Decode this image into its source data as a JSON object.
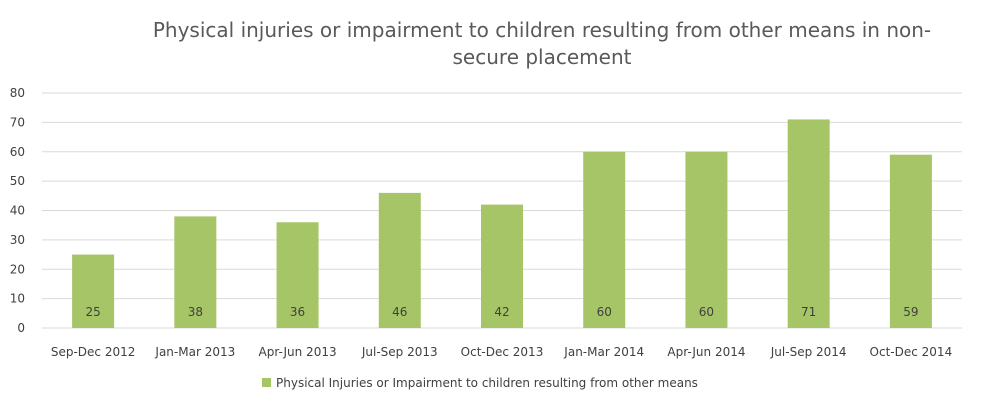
{
  "chart_data": {
    "type": "bar",
    "title_lines": [
      "Physical injuries or impairment to children resulting from other means in non-",
      "secure placement"
    ],
    "categories": [
      "Sep-Dec 2012",
      "Jan-Mar 2013",
      "Apr-Jun 2013",
      "Jul-Sep 2013",
      "Oct-Dec 2013",
      "Jan-Mar 2014",
      "Apr-Jun 2014",
      "Jul-Sep 2014",
      "Oct-Dec 2014"
    ],
    "series": [
      {
        "name": "Physical Injuries or Impairment to children resulting from other means",
        "values": [
          25,
          38,
          36,
          46,
          42,
          60,
          60,
          71,
          59
        ],
        "color": "#a6c567"
      }
    ],
    "ylim": [
      0,
      80
    ],
    "yticks": [
      0,
      10,
      20,
      30,
      40,
      50,
      60,
      70,
      80
    ],
    "grid": true,
    "legend_position": "bottom",
    "data_labels": true
  }
}
